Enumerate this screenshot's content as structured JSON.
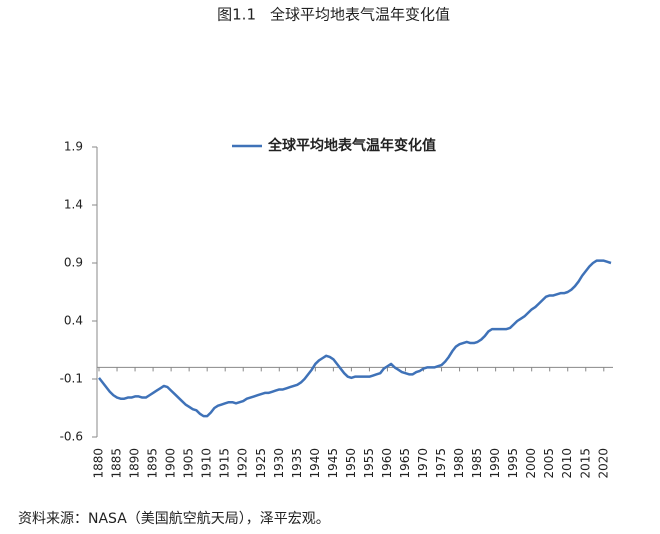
{
  "figure_label": "图1.1",
  "source": "资料来源：NASA（美国航空航天局），泽平宏观。",
  "chart_data": {
    "type": "line",
    "title": "全球平均地表气温年变化值",
    "x": [
      1880,
      1881,
      1882,
      1883,
      1884,
      1885,
      1886,
      1887,
      1888,
      1889,
      1890,
      1891,
      1892,
      1893,
      1894,
      1895,
      1896,
      1897,
      1898,
      1899,
      1900,
      1901,
      1902,
      1903,
      1904,
      1905,
      1906,
      1907,
      1908,
      1909,
      1910,
      1911,
      1912,
      1913,
      1914,
      1915,
      1916,
      1917,
      1918,
      1919,
      1920,
      1921,
      1922,
      1923,
      1924,
      1925,
      1926,
      1927,
      1928,
      1929,
      1930,
      1931,
      1932,
      1933,
      1934,
      1935,
      1936,
      1937,
      1938,
      1939,
      1940,
      1941,
      1942,
      1943,
      1944,
      1945,
      1946,
      1947,
      1948,
      1949,
      1950,
      1951,
      1952,
      1953,
      1954,
      1955,
      1956,
      1957,
      1958,
      1959,
      1960,
      1961,
      1962,
      1963,
      1964,
      1965,
      1966,
      1967,
      1968,
      1969,
      1970,
      1971,
      1972,
      1973,
      1974,
      1975,
      1976,
      1977,
      1978,
      1979,
      1980,
      1981,
      1982,
      1983,
      1984,
      1985,
      1986,
      1987,
      1988,
      1989,
      1990,
      1991,
      1992,
      1993,
      1994,
      1995,
      1996,
      1997,
      1998,
      1999,
      2000,
      2001,
      2002,
      2003,
      2004,
      2005,
      2006,
      2007,
      2008,
      2009,
      2010,
      2011,
      2012,
      2013,
      2014,
      2015,
      2016,
      2017,
      2018,
      2019,
      2020,
      2021,
      2022
    ],
    "series": [
      {
        "name": "全球平均地表气温年变化值",
        "color": "#3f72b8",
        "values": [
          -0.09,
          -0.13,
          -0.17,
          -0.21,
          -0.24,
          -0.26,
          -0.27,
          -0.27,
          -0.26,
          -0.26,
          -0.25,
          -0.25,
          -0.26,
          -0.26,
          -0.24,
          -0.22,
          -0.2,
          -0.18,
          -0.16,
          -0.17,
          -0.2,
          -0.23,
          -0.26,
          -0.29,
          -0.32,
          -0.34,
          -0.36,
          -0.37,
          -0.4,
          -0.42,
          -0.42,
          -0.39,
          -0.35,
          -0.33,
          -0.32,
          -0.31,
          -0.3,
          -0.3,
          -0.31,
          -0.3,
          -0.29,
          -0.27,
          -0.26,
          -0.25,
          -0.24,
          -0.23,
          -0.22,
          -0.22,
          -0.21,
          -0.2,
          -0.19,
          -0.19,
          -0.18,
          -0.17,
          -0.16,
          -0.15,
          -0.13,
          -0.1,
          -0.06,
          -0.02,
          0.03,
          0.06,
          0.08,
          0.1,
          0.09,
          0.07,
          0.03,
          -0.01,
          -0.05,
          -0.08,
          -0.09,
          -0.08,
          -0.08,
          -0.08,
          -0.08,
          -0.08,
          -0.07,
          -0.06,
          -0.05,
          -0.01,
          0.01,
          0.03,
          0.0,
          -0.02,
          -0.04,
          -0.05,
          -0.06,
          -0.06,
          -0.04,
          -0.03,
          -0.01,
          0.0,
          0.0,
          0.0,
          0.01,
          0.02,
          0.05,
          0.09,
          0.14,
          0.18,
          0.2,
          0.21,
          0.22,
          0.21,
          0.21,
          0.22,
          0.24,
          0.27,
          0.31,
          0.33,
          0.33,
          0.33,
          0.33,
          0.33,
          0.34,
          0.37,
          0.4,
          0.42,
          0.44,
          0.47,
          0.5,
          0.52,
          0.55,
          0.58,
          0.61,
          0.62,
          0.62,
          0.63,
          0.64,
          0.64,
          0.65,
          0.67,
          0.7,
          0.74,
          0.79,
          0.83,
          0.87,
          0.9,
          0.92,
          0.92,
          0.92,
          0.91,
          0.9
        ]
      }
    ],
    "xlim": [
      1880,
      2022
    ],
    "xticks": [
      1880,
      1885,
      1890,
      1895,
      1900,
      1905,
      1910,
      1915,
      1920,
      1925,
      1930,
      1935,
      1940,
      1945,
      1950,
      1955,
      1960,
      1965,
      1970,
      1975,
      1980,
      1985,
      1990,
      1995,
      2000,
      2005,
      2010,
      2015,
      2020
    ],
    "ylim": [
      -0.6,
      1.9
    ],
    "yticks": [
      -0.6,
      -0.1,
      0.4,
      0.9,
      1.4,
      1.9
    ],
    "grid": false,
    "legend": "top"
  }
}
